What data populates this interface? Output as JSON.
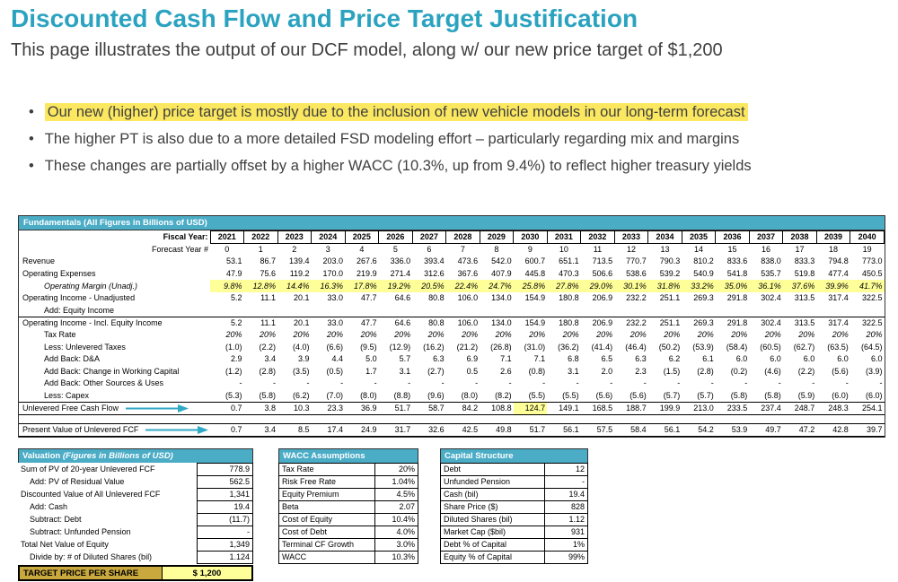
{
  "page": {
    "title": "Discounted Cash Flow and Price Target Justification",
    "subtitle": "This page illustrates the output of our DCF model, along w/ our new price target of $1,200",
    "bullets": [
      {
        "text": "Our new (higher) price target is mostly due to the inclusion of new vehicle models in our long-term forecast",
        "highlight": true
      },
      {
        "text": "The higher PT is also due to a more detailed FSD modeling effort – particularly regarding mix and margins",
        "highlight": false
      },
      {
        "text": "These changes are partially offset by a higher WACC (10.3%, up from 9.4%) to reflect higher treasury yields",
        "highlight": false
      }
    ]
  },
  "colors": {
    "accent_teal": "#4BACC6",
    "title_teal": "#2BA3C0",
    "highlighter_yellow": "#FBE860",
    "cell_yellow": "#FFFF99",
    "target_gold": "#C9A93E"
  },
  "fundamentals": {
    "header": "Fundamentals (All Figures in Billions of USD)",
    "fiscal_year_label": "Fiscal Year:",
    "forecast_year_label": "Forecast Year #",
    "fiscal_years": [
      "2021",
      "2022",
      "2023",
      "2024",
      "2025",
      "2026",
      "2027",
      "2028",
      "2029",
      "2030",
      "2031",
      "2032",
      "2033",
      "2034",
      "2035",
      "2036",
      "2037",
      "2038",
      "2039",
      "2040"
    ],
    "forecast_years": [
      "0",
      "1",
      "2",
      "3",
      "4",
      "5",
      "6",
      "7",
      "8",
      "9",
      "10",
      "11",
      "12",
      "13",
      "14",
      "15",
      "16",
      "17",
      "18",
      "19"
    ],
    "rows": [
      {
        "label": "Revenue",
        "values": [
          "53.1",
          "86.7",
          "139.4",
          "203.0",
          "267.6",
          "336.0",
          "393.4",
          "473.6",
          "542.0",
          "600.7",
          "651.1",
          "713.5",
          "770.7",
          "790.3",
          "810.2",
          "833.6",
          "838.0",
          "833.3",
          "794.8",
          "773.0"
        ]
      },
      {
        "label": "Operating Expenses",
        "values": [
          "47.9",
          "75.6",
          "119.2",
          "170.0",
          "219.9",
          "271.4",
          "312.6",
          "367.6",
          "407.9",
          "445.8",
          "470.3",
          "506.6",
          "538.6",
          "539.2",
          "540.9",
          "541.8",
          "535.7",
          "519.8",
          "477.4",
          "450.5"
        ]
      },
      {
        "label": "Operating Margin (Unadj.)",
        "indent": true,
        "cls": "margin",
        "values": [
          "9.8%",
          "12.8%",
          "14.4%",
          "16.3%",
          "17.8%",
          "19.2%",
          "20.5%",
          "22.4%",
          "24.7%",
          "25.8%",
          "27.8%",
          "29.0%",
          "30.1%",
          "31.8%",
          "33.2%",
          "35.0%",
          "36.1%",
          "37.6%",
          "39.9%",
          "41.7%"
        ]
      },
      {
        "label": "Operating Income - Unadjusted",
        "values": [
          "5.2",
          "11.1",
          "20.1",
          "33.0",
          "47.7",
          "64.6",
          "80.8",
          "106.0",
          "134.0",
          "154.9",
          "180.8",
          "206.9",
          "232.2",
          "251.1",
          "269.3",
          "291.8",
          "302.4",
          "313.5",
          "317.4",
          "322.5"
        ]
      },
      {
        "label": "Add: Equity Income",
        "indent": true,
        "values": [
          "",
          "",
          "",
          "",
          "",
          "",
          "",
          "",
          "",
          "",
          "",
          "",
          "",
          "",
          "",
          "",
          "",
          "",
          "",
          ""
        ]
      },
      {
        "label": "Operating Income - Incl. Equity Income",
        "cls": "topline",
        "values": [
          "5.2",
          "11.1",
          "20.1",
          "33.0",
          "47.7",
          "64.6",
          "80.8",
          "106.0",
          "134.0",
          "154.9",
          "180.8",
          "206.9",
          "232.2",
          "251.1",
          "269.3",
          "291.8",
          "302.4",
          "313.5",
          "317.4",
          "322.5"
        ]
      },
      {
        "label": "Tax Rate",
        "indent": true,
        "cls": "pct",
        "values": [
          "20%",
          "20%",
          "20%",
          "20%",
          "20%",
          "20%",
          "20%",
          "20%",
          "20%",
          "20%",
          "20%",
          "20%",
          "20%",
          "20%",
          "20%",
          "20%",
          "20%",
          "20%",
          "20%",
          "20%"
        ]
      },
      {
        "label": "Less: Unlevered Taxes",
        "indent": true,
        "values": [
          "(1.0)",
          "(2.2)",
          "(4.0)",
          "(6.6)",
          "(9.5)",
          "(12.9)",
          "(16.2)",
          "(21.2)",
          "(26.8)",
          "(31.0)",
          "(36.2)",
          "(41.4)",
          "(46.4)",
          "(50.2)",
          "(53.9)",
          "(58.4)",
          "(60.5)",
          "(62.7)",
          "(63.5)",
          "(64.5)"
        ]
      },
      {
        "label": "Add Back: D&A",
        "indent": true,
        "values": [
          "2.9",
          "3.4",
          "3.9",
          "4.4",
          "5.0",
          "5.7",
          "6.3",
          "6.9",
          "7.1",
          "7.1",
          "6.8",
          "6.5",
          "6.3",
          "6.2",
          "6.1",
          "6.0",
          "6.0",
          "6.0",
          "6.0",
          "6.0"
        ]
      },
      {
        "label": "Add Back: Change in Working Capital",
        "indent": true,
        "values": [
          "(1.2)",
          "(2.8)",
          "(3.5)",
          "(0.5)",
          "1.7",
          "3.1",
          "(2.7)",
          "0.5",
          "2.6",
          "(0.8)",
          "3.1",
          "2.0",
          "2.3",
          "(1.5)",
          "(2.8)",
          "(0.2)",
          "(4.6)",
          "(2.2)",
          "(5.6)",
          "(3.9)"
        ]
      },
      {
        "label": "Add Back: Other Sources & Uses",
        "indent": true,
        "values": [
          "-",
          "-",
          "-",
          "-",
          "-",
          "-",
          "-",
          "-",
          "-",
          "-",
          "-",
          "-",
          "-",
          "-",
          "-",
          "-",
          "-",
          "-",
          "-",
          "-"
        ]
      },
      {
        "label": "Less: Capex",
        "indent": true,
        "values": [
          "(5.3)",
          "(5.8)",
          "(6.2)",
          "(7.0)",
          "(8.0)",
          "(8.8)",
          "(9.6)",
          "(8.0)",
          "(8.2)",
          "(5.5)",
          "(5.5)",
          "(5.6)",
          "(5.6)",
          "(5.7)",
          "(5.7)",
          "(5.8)",
          "(5.8)",
          "(5.9)",
          "(6.0)",
          "(6.0)"
        ]
      },
      {
        "label": "Unlevered Free Cash Flow",
        "cls": "topline bottomline",
        "arrow": true,
        "highlight_index": 9,
        "values": [
          "0.7",
          "3.8",
          "10.3",
          "23.3",
          "36.9",
          "51.7",
          "58.7",
          "84.2",
          "108.8",
          "124.7",
          "149.1",
          "168.5",
          "188.7",
          "199.9",
          "213.0",
          "233.5",
          "237.4",
          "248.7",
          "248.3",
          "254.1"
        ]
      },
      {
        "label": "",
        "cls": "spacer",
        "values": []
      },
      {
        "label": "Present Value of Unlevered FCF",
        "cls": "topline bottomline",
        "arrow": true,
        "values": [
          "0.7",
          "3.4",
          "8.5",
          "17.4",
          "24.9",
          "31.7",
          "32.6",
          "42.5",
          "49.8",
          "51.7",
          "56.1",
          "57.5",
          "58.4",
          "56.1",
          "54.2",
          "53.9",
          "49.7",
          "47.2",
          "42.8",
          "39.7"
        ]
      }
    ]
  },
  "valuation": {
    "header_bold": "Valuation",
    "header_italic": "(Figures in Billions of USD)",
    "rows": [
      {
        "label": "Sum of PV of 20-year Unlevered FCF",
        "value": "778.9"
      },
      {
        "label": "Add: PV of Residual Value",
        "value": "562.5",
        "indent": true
      },
      {
        "label": "Discounted Value of All Unlevered FCF",
        "value": "1,341"
      },
      {
        "label": "Add: Cash",
        "value": "19.4",
        "indent": true
      },
      {
        "label": "Subtract: Debt",
        "value": "(11.7)",
        "indent": true
      },
      {
        "label": "Subtract: Unfunded Pension",
        "value": "-",
        "indent": true
      },
      {
        "label": "Total Net Value of Equity",
        "value": "1,349"
      },
      {
        "label": "Divide by: # of Diluted Shares (bil)",
        "value": "1.124",
        "indent": true
      }
    ]
  },
  "wacc": {
    "header": "WACC Assumptions",
    "rows": [
      {
        "label": "Tax Rate",
        "value": "20%"
      },
      {
        "label": "Risk Free Rate",
        "value": "1.04%"
      },
      {
        "label": "Equity Premium",
        "value": "4.5%"
      },
      {
        "label": "Beta",
        "value": "2.07"
      },
      {
        "label": "Cost of Equity",
        "value": "10.4%"
      },
      {
        "label": "Cost of Debt",
        "value": "4.0%"
      },
      {
        "label": "Terminal CF Growth",
        "value": "3.0%"
      },
      {
        "label": "WACC",
        "value": "10.3%"
      }
    ]
  },
  "capital": {
    "header": "Capital Structure",
    "rows": [
      {
        "label": "Debt",
        "value": "12"
      },
      {
        "label": "Unfunded Pension",
        "value": "-"
      },
      {
        "label": "Cash (bil)",
        "value": "19.4"
      },
      {
        "label": "Share Price ($)",
        "value": "828"
      },
      {
        "label": "Diluted Shares (bil)",
        "value": "1.12"
      },
      {
        "label": "Market Cap ($bil)",
        "value": "931"
      },
      {
        "label": "Debt % of Capital",
        "value": "1%"
      },
      {
        "label": "Equity % of Capital",
        "value": "99%"
      }
    ]
  },
  "target": {
    "label": "TARGET PRICE PER SHARE",
    "value": "$ 1,200"
  }
}
